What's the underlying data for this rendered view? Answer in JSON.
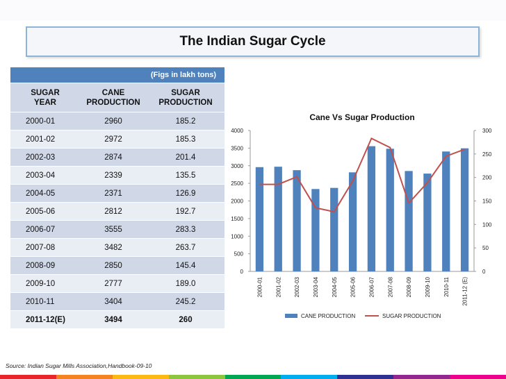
{
  "slide": {
    "title": "The Indian Sugar Cycle",
    "figs_note": "(Figs in lakh tons)",
    "source": "Source: Indian Sugar Mills Association,Handbook-09-10"
  },
  "table": {
    "headers": [
      "SUGAR YEAR",
      "CANE PRODUCTION",
      "SUGAR PRODUCTION"
    ],
    "header_lines": [
      [
        "SUGAR",
        "YEAR"
      ],
      [
        "CANE",
        "PRODUCTION"
      ],
      [
        "SUGAR",
        "PRODUCTION"
      ]
    ],
    "rows": [
      [
        "2000-01",
        "2960",
        "185.2"
      ],
      [
        "2001-02",
        "2972",
        "185.3"
      ],
      [
        "2002-03",
        "2874",
        "201.4"
      ],
      [
        "2003-04",
        "2339",
        "135.5"
      ],
      [
        "2004-05",
        "2371",
        "126.9"
      ],
      [
        "2005-06",
        "2812",
        "192.7"
      ],
      [
        "2006-07",
        "3555",
        "283.3"
      ],
      [
        "2007-08",
        "3482",
        "263.7"
      ],
      [
        "2008-09",
        "2850",
        "145.4"
      ],
      [
        "2009-10",
        "2777",
        "189.0"
      ],
      [
        "2010-11",
        "3404",
        "245.2"
      ],
      [
        "2011-12(E)",
        "3494",
        "260"
      ]
    ]
  },
  "chart_data": {
    "type": "bar",
    "title": "Cane Vs  Sugar Production",
    "categories": [
      "2000-01",
      "2001-02",
      "2002-03",
      "2003-04",
      "2004-05",
      "2005-06",
      "2006-07",
      "2007-08",
      "2008-09",
      "2009-10",
      "2010-11",
      "2011-12 (E)"
    ],
    "series": [
      {
        "name": "CANE PRODUCTION",
        "type": "bar",
        "axis": "left",
        "values": [
          2960,
          2972,
          2874,
          2339,
          2371,
          2812,
          3555,
          3482,
          2850,
          2777,
          3404,
          3494
        ]
      },
      {
        "name": "SUGAR PRODUCTION",
        "type": "line",
        "axis": "right",
        "values": [
          185.2,
          185.3,
          201.4,
          135.5,
          126.9,
          192.7,
          283.3,
          263.7,
          145.4,
          189.0,
          245.2,
          260
        ]
      }
    ],
    "ylim_left": [
      0,
      4000
    ],
    "yticks_left": [
      0,
      500,
      1000,
      1500,
      2000,
      2500,
      3000,
      3500,
      4000
    ],
    "ylim_right": [
      0,
      300
    ],
    "yticks_right": [
      0,
      50,
      100,
      150,
      200,
      250,
      300
    ],
    "legend": "bottom",
    "colors": {
      "bar": "#4f81bd",
      "line": "#c0504d"
    }
  },
  "theme": {
    "accent_strip": [
      "#e8262a",
      "#f58220",
      "#fcb813",
      "#8cc63f",
      "#00a651",
      "#00aeef",
      "#2e3192",
      "#92278f",
      "#ec008c"
    ]
  }
}
